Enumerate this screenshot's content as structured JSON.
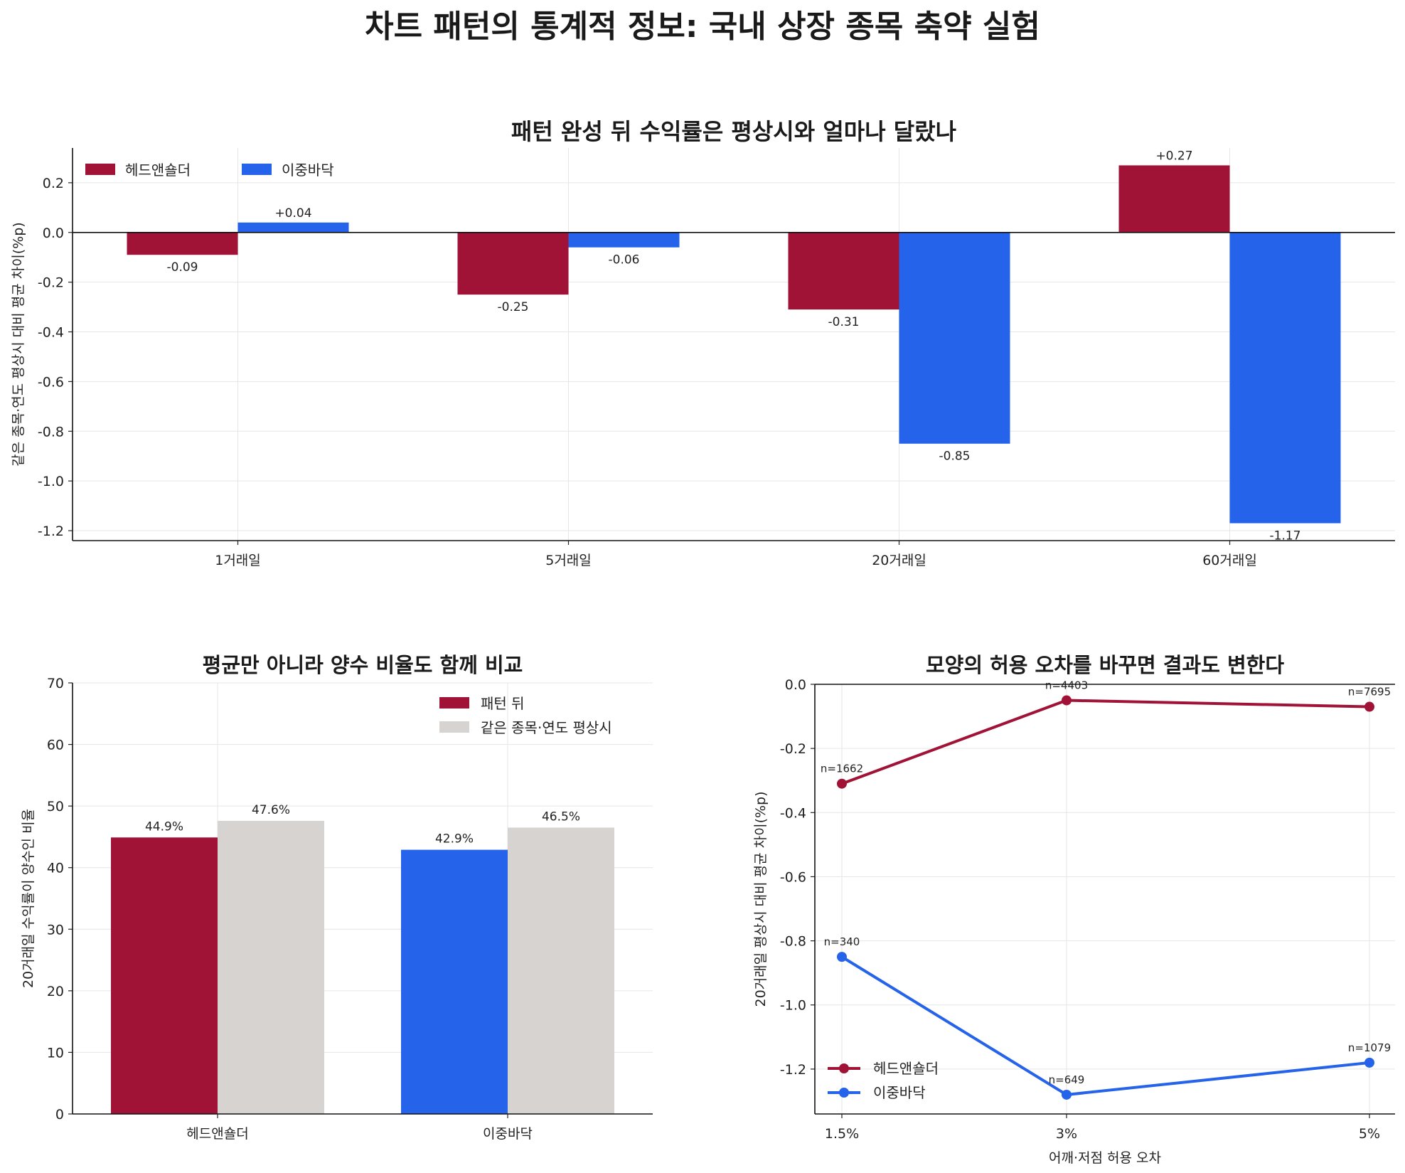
{
  "suptitle": "차트 패턴의 통계적 정보: 국내 상장 종목 축약 실험",
  "colors": {
    "hs": "#A11237",
    "db": "#2563EB",
    "baseline": "#D6D3D1"
  },
  "chart_data": [
    {
      "id": "top",
      "type": "bar",
      "title": "패턴 완성 뒤 수익률은 평상시와 얼마나 달랐나",
      "ylabel": "같은 종목·연도 평상시 대비 평균 차이(%p)",
      "xlabel": "",
      "categories": [
        "1거래일",
        "5거래일",
        "20거래일",
        "60거래일"
      ],
      "series": [
        {
          "name": "헤드앤숄더",
          "values": [
            -0.09,
            -0.25,
            -0.31,
            0.27
          ],
          "labels": [
            "-0.09",
            "-0.25",
            "-0.31",
            "+0.27"
          ]
        },
        {
          "name": "이중바닥",
          "values": [
            0.04,
            -0.06,
            -0.85,
            -1.17
          ],
          "labels": [
            "+0.04",
            "-0.06",
            "-0.85",
            "-1.17"
          ]
        }
      ],
      "ylim": [
        -1.24,
        0.34
      ],
      "yticks": [
        0.2,
        0.0,
        -0.2,
        -0.4,
        -0.6,
        -0.8,
        -1.0,
        -1.2
      ],
      "ytick_labels": [
        "0.2",
        "0.0",
        "-0.2",
        "-0.4",
        "-0.6",
        "-0.8",
        "-1.0",
        "-1.2"
      ],
      "grid": true,
      "legend": "top-left"
    },
    {
      "id": "bl",
      "type": "bar",
      "title": "평균만 아니라 양수 비율도 함께 비교",
      "ylabel": "20거래일 수익률이 양수인 비율",
      "xlabel": "",
      "categories": [
        "헤드앤숄더",
        "이중바닥"
      ],
      "series": [
        {
          "name": "패턴 뒤",
          "values": [
            44.9,
            42.9
          ],
          "labels": [
            "44.9%",
            "42.9%"
          ]
        },
        {
          "name": "같은 종목·연도 평상시",
          "values": [
            47.6,
            46.5
          ],
          "labels": [
            "47.6%",
            "46.5%"
          ]
        }
      ],
      "ylim": [
        0,
        70
      ],
      "yticks": [
        0,
        10,
        20,
        30,
        40,
        50,
        60,
        70
      ],
      "ytick_labels": [
        "0",
        "10",
        "20",
        "30",
        "40",
        "50",
        "60",
        "70"
      ],
      "grid": true,
      "legend": "top-right"
    },
    {
      "id": "br",
      "type": "line",
      "title": "모양의 허용 오차를 바꾸면 결과도 변한다",
      "ylabel": "20거래일 평상시 대비 평균 차이(%p)",
      "xlabel": "어깨·저점 허용 오차",
      "categories": [
        "1.5%",
        "3%",
        "5%"
      ],
      "series": [
        {
          "name": "헤드앤숄더",
          "values": [
            -0.31,
            -0.05,
            -0.07
          ],
          "n_labels": [
            "n=1662",
            "n=4403",
            "n=7695"
          ]
        },
        {
          "name": "이중바닥",
          "values": [
            -0.85,
            -1.28,
            -1.18
          ],
          "n_labels": [
            "n=340",
            "n=649",
            "n=1079"
          ]
        }
      ],
      "ylim": [
        -1.34,
        0.0
      ],
      "yticks": [
        0.0,
        -0.2,
        -0.4,
        -0.6,
        -0.8,
        -1.0,
        -1.2
      ],
      "ytick_labels": [
        "0.0",
        "-0.2",
        "-0.4",
        "-0.6",
        "-0.8",
        "-1.0",
        "-1.2"
      ],
      "grid": true,
      "legend": "bottom-left"
    }
  ]
}
